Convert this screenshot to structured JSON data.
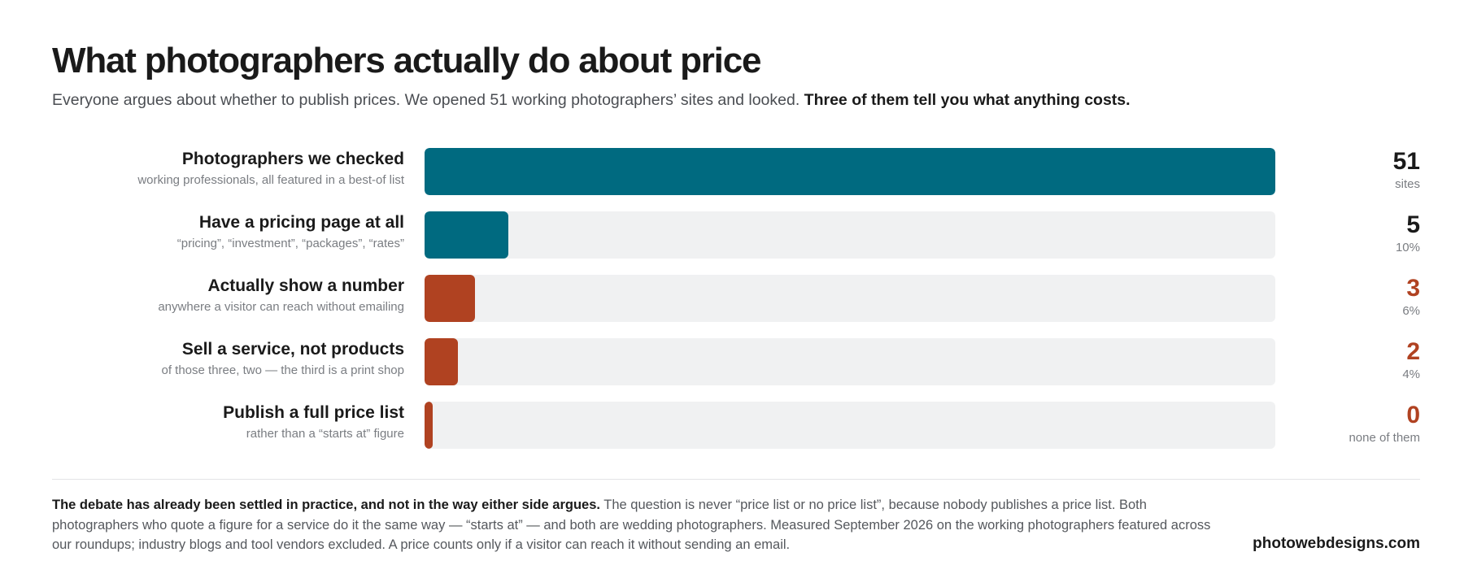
{
  "header": {
    "title": "What photographers actually do about price",
    "subtitle_lead": "Everyone argues about whether to publish prices. We opened 51 working photographers’ sites and looked.",
    "subtitle_emphasis": "Three of them tell you what anything costs."
  },
  "colors": {
    "teal": "#006a80",
    "rust": "#b04221",
    "track": "#f0f1f2"
  },
  "chart_data": {
    "type": "bar",
    "orientation": "horizontal",
    "max": 51,
    "rows": [
      {
        "label": "Photographers we checked",
        "sublabel": "working professionals, all featured in a best-of list",
        "value": 51,
        "value_text": "51",
        "unit_text": "sites",
        "color": "#006a80"
      },
      {
        "label": "Have a pricing page at all",
        "sublabel": "“pricing”, “investment”, “packages”, “rates”",
        "value": 5,
        "value_text": "5",
        "unit_text": "10%",
        "color": "#006a80"
      },
      {
        "label": "Actually show a number",
        "sublabel": "anywhere a visitor can reach without emailing",
        "value": 3,
        "value_text": "3",
        "unit_text": "6%",
        "color": "#b04221"
      },
      {
        "label": "Sell a service, not products",
        "sublabel": "of those three, two — the third is a print shop",
        "value": 2,
        "value_text": "2",
        "unit_text": "4%",
        "color": "#b04221"
      },
      {
        "label": "Publish a full price list",
        "sublabel": "rather than a “starts at” figure",
        "value": 0,
        "value_text": "0",
        "unit_text": "none of them",
        "color": "#b04221"
      }
    ]
  },
  "footer": {
    "note_lead": "The debate has already been settled in practice, and not in the way either side argues.",
    "note_body": "The question is never “price list or no price list”, because nobody publishes a price list. Both photographers who quote a figure for a service do it the same way — “starts at” — and both are wedding photographers. Measured September 2026 on the working photographers featured across our roundups; industry blogs and tool vendors excluded. A price counts only if a visitor can reach it without sending an email.",
    "source": "photowebdesigns.com"
  }
}
